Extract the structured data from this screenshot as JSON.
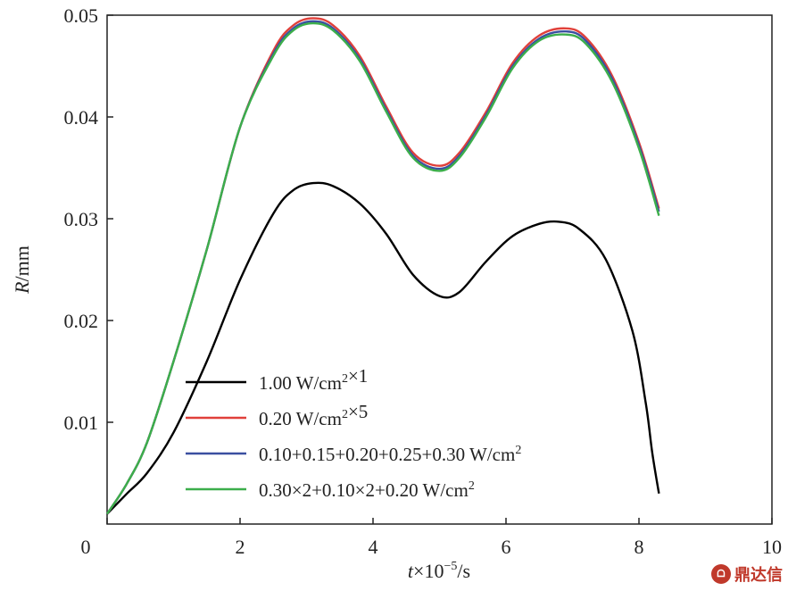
{
  "chart_data": {
    "type": "line",
    "xlabel": "t×10⁻⁵/s",
    "ylabel": "R/mm",
    "xlim": [
      0,
      10
    ],
    "ylim": [
      0,
      0.05
    ],
    "xticks": [
      "0",
      "2",
      "4",
      "6",
      "8",
      "10"
    ],
    "yticks": [
      "0.01",
      "0.02",
      "0.03",
      "0.04",
      "0.05"
    ],
    "grid": false,
    "legend_position": "lower-left",
    "series": [
      {
        "name": "1.00 W/cm²×1",
        "color": "#000000",
        "x": [
          0.0,
          0.3,
          0.6,
          1.0,
          1.5,
          2.0,
          2.5,
          2.8,
          3.1,
          3.4,
          3.8,
          4.2,
          4.6,
          5.0,
          5.3,
          5.7,
          6.1,
          6.5,
          6.8,
          7.1,
          7.5,
          7.9,
          8.1,
          8.2,
          8.3
        ],
        "y": [
          0.001,
          0.003,
          0.005,
          0.009,
          0.016,
          0.024,
          0.0305,
          0.0328,
          0.0335,
          0.0332,
          0.0315,
          0.0285,
          0.0245,
          0.0224,
          0.0228,
          0.0258,
          0.0283,
          0.0295,
          0.0297,
          0.029,
          0.026,
          0.019,
          0.012,
          0.007,
          0.003
        ]
      },
      {
        "name": "0.20 W/cm²×5",
        "color": "#e0403a",
        "x": [
          0.0,
          0.3,
          0.6,
          1.0,
          1.5,
          2.0,
          2.5,
          2.8,
          3.1,
          3.4,
          3.8,
          4.2,
          4.6,
          5.0,
          5.3,
          5.7,
          6.1,
          6.5,
          6.9,
          7.2,
          7.6,
          8.0,
          8.3
        ],
        "y": [
          0.001,
          0.004,
          0.008,
          0.016,
          0.027,
          0.039,
          0.0465,
          0.049,
          0.0497,
          0.049,
          0.046,
          0.041,
          0.0365,
          0.0352,
          0.0365,
          0.0405,
          0.0453,
          0.048,
          0.0487,
          0.0478,
          0.044,
          0.0375,
          0.031
        ]
      },
      {
        "name": "0.10+0.15+0.20+0.25+0.30 W/cm²",
        "color": "#3a4fa0",
        "x": [
          0.0,
          0.3,
          0.6,
          1.0,
          1.5,
          2.0,
          2.5,
          2.8,
          3.1,
          3.4,
          3.8,
          4.2,
          4.6,
          5.0,
          5.3,
          5.7,
          6.1,
          6.5,
          6.9,
          7.2,
          7.6,
          8.0,
          8.3
        ],
        "y": [
          0.001,
          0.004,
          0.008,
          0.016,
          0.027,
          0.039,
          0.0462,
          0.0487,
          0.0494,
          0.0487,
          0.0457,
          0.0407,
          0.0362,
          0.0349,
          0.0362,
          0.0402,
          0.045,
          0.0477,
          0.0484,
          0.0475,
          0.0437,
          0.0372,
          0.0307
        ]
      },
      {
        "name": "0.30×2+0.10×2+0.20 W/cm²",
        "color": "#3cae4b",
        "x": [
          0.0,
          0.3,
          0.6,
          1.0,
          1.5,
          2.0,
          2.5,
          2.8,
          3.1,
          3.4,
          3.8,
          4.2,
          4.6,
          5.0,
          5.3,
          5.7,
          6.1,
          6.5,
          6.9,
          7.2,
          7.6,
          8.0,
          8.3
        ],
        "y": [
          0.001,
          0.004,
          0.008,
          0.016,
          0.027,
          0.039,
          0.046,
          0.0485,
          0.0492,
          0.0485,
          0.0455,
          0.0405,
          0.036,
          0.0347,
          0.036,
          0.04,
          0.0448,
          0.0475,
          0.0481,
          0.0472,
          0.0434,
          0.0369,
          0.0303
        ]
      }
    ]
  },
  "watermark": {
    "seal": "ᗝ",
    "text": "鼎达信"
  }
}
